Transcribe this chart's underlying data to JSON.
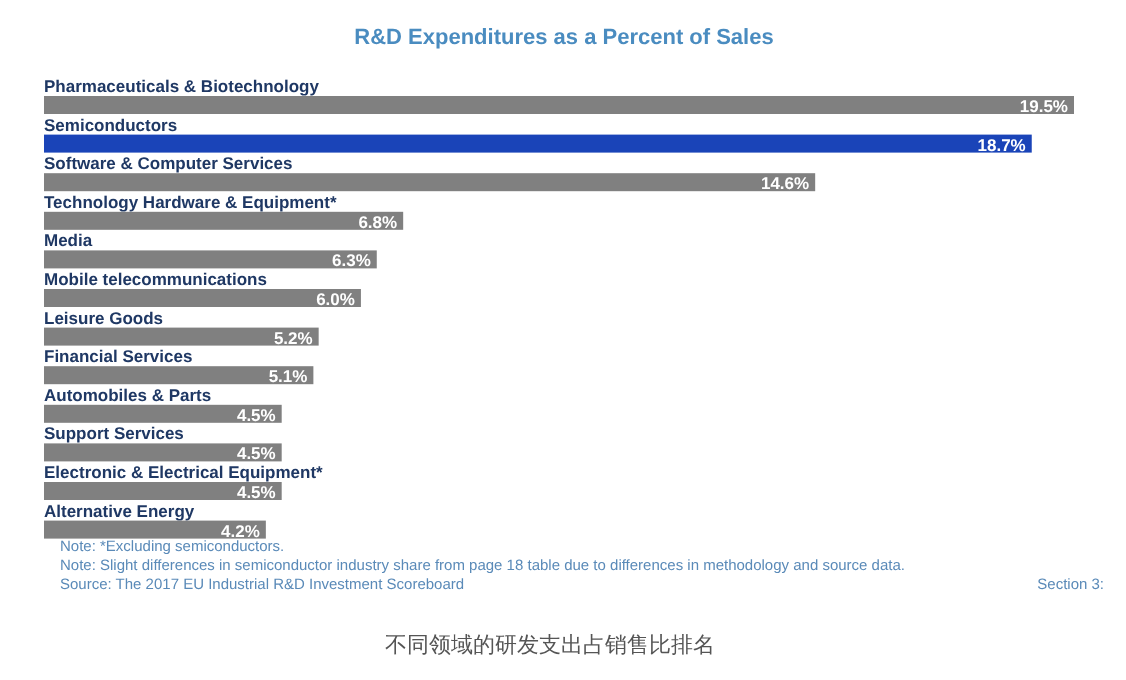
{
  "chart_data": {
    "type": "bar",
    "orientation": "horizontal",
    "title": "R&D Expenditures as a Percent of Sales",
    "categories": [
      "Pharmaceuticals & Biotechnology",
      "Semiconductors",
      "Software & Computer Services",
      "Technology Hardware & Equipment*",
      "Media",
      "Mobile telecommunications",
      "Leisure Goods",
      "Financial Services",
      "Automobiles & Parts",
      "Support Services",
      "Electronic & Electrical Equipment*",
      "Alternative Energy"
    ],
    "values": [
      19.5,
      18.7,
      14.6,
      6.8,
      6.3,
      6.0,
      5.2,
      5.1,
      4.5,
      4.5,
      4.5,
      4.2
    ],
    "value_labels": [
      "19.5%",
      "18.7%",
      "14.6%",
      "6.8%",
      "6.3%",
      "6.0%",
      "5.2%",
      "5.1%",
      "4.5%",
      "4.5%",
      "4.5%",
      "4.2%"
    ],
    "colors": [
      "#808080",
      "#1a44b8",
      "#808080",
      "#808080",
      "#808080",
      "#808080",
      "#808080",
      "#808080",
      "#808080",
      "#808080",
      "#808080",
      "#808080"
    ],
    "annotations": [
      "Note: *Excluding semiconductors.",
      "Note: Slight differences in semiconductor industry share from page 18 table due to differences in methodology and source data.",
      "Source: The 2017 EU Industrial R&D Investment Scoreboard",
      "Section 3:",
      "不同领域的研发支出占销售比排名"
    ]
  }
}
